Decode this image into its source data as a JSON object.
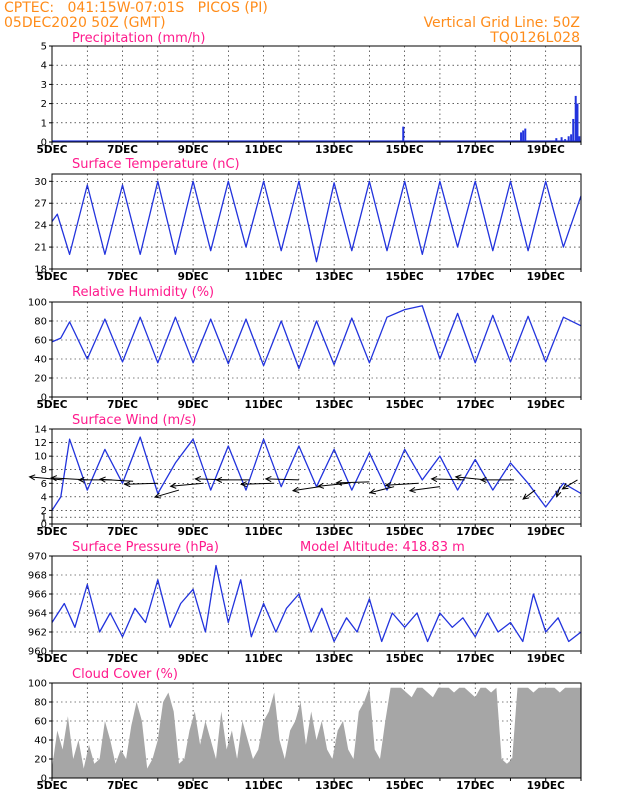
{
  "header": {
    "source_line": "CPTEC:   041:15W-07:01S   PICOS (PI)",
    "run_line": "05DEC2020 50Z (GMT)",
    "grid_note": "Vertical Grid Line: 50Z",
    "product_code": "TQ0126L028"
  },
  "colors": {
    "header_text": "#ff8c1a",
    "panel_title": "#ff1a8c",
    "series_line": "#2233dd",
    "cloud_fill": "#a6a6a6",
    "wind_arrow": "#000000"
  },
  "x_axis_labels": [
    "5DEC",
    "7DEC",
    "9DEC",
    "11DEC",
    "13DEC",
    "15DEC",
    "17DEC",
    "19DEC"
  ],
  "chart_data": [
    {
      "id": "precip",
      "type": "bar",
      "title": "Precipitation (mm/h)",
      "ylim": [
        0,
        5
      ],
      "yticks": [
        0,
        1,
        2,
        3,
        4,
        5
      ],
      "x_range_days": [
        5,
        20
      ],
      "grid": true,
      "x": [
        14.96,
        18.3,
        18.36,
        18.42,
        19.3,
        19.45,
        19.55,
        19.65,
        19.72,
        19.78,
        19.85,
        19.9,
        19.95
      ],
      "values": [
        0.8,
        0.5,
        0.6,
        0.7,
        0.2,
        0.25,
        0.15,
        0.3,
        0.4,
        1.2,
        2.4,
        2.0,
        0.3
      ]
    },
    {
      "id": "temp",
      "type": "line",
      "title": "Surface Temperature (nC)",
      "ylim": [
        18,
        31
      ],
      "yticks": [
        18,
        21,
        24,
        27,
        30
      ],
      "x_range_days": [
        5,
        20
      ],
      "grid": true,
      "x": [
        5,
        5.15,
        5.5,
        6,
        6.5,
        7,
        7.5,
        8,
        8.5,
        9,
        9.5,
        10,
        10.5,
        11,
        11.5,
        12,
        12.5,
        13,
        13.5,
        14,
        14.5,
        15,
        15.5,
        16,
        16.5,
        17,
        17.5,
        18,
        18.5,
        19,
        19.5,
        20
      ],
      "values": [
        24.5,
        25.5,
        20,
        29.5,
        20,
        29.5,
        20,
        30,
        20,
        30,
        20.5,
        30,
        21,
        30,
        20.5,
        30,
        19,
        29.8,
        20.5,
        30,
        20.5,
        30,
        20,
        30,
        21,
        30,
        20.5,
        30,
        20.5,
        30,
        21,
        28
      ]
    },
    {
      "id": "rh",
      "type": "line",
      "title": "Relative Humidity (%)",
      "ylim": [
        0,
        100
      ],
      "yticks": [
        0,
        20,
        40,
        60,
        80,
        100
      ],
      "x_range_days": [
        5,
        20
      ],
      "grid": true,
      "x": [
        5,
        5.25,
        5.5,
        6,
        6.5,
        7,
        7.5,
        8,
        8.5,
        9,
        9.5,
        10,
        10.5,
        11,
        11.5,
        12,
        12.5,
        13,
        13.5,
        14,
        14.5,
        15,
        15.5,
        16,
        16.5,
        17,
        17.5,
        18,
        18.5,
        19,
        19.5,
        20
      ],
      "values": [
        58,
        62,
        79,
        40,
        82,
        37,
        84,
        36,
        84,
        36,
        82,
        35,
        82,
        33,
        80,
        30,
        80,
        34,
        83,
        36,
        84,
        92,
        96,
        40,
        88,
        36,
        86,
        37,
        85,
        37,
        84,
        75
      ]
    },
    {
      "id": "wind",
      "type": "line",
      "title": "Surface Wind (m/s)",
      "ylim": [
        0,
        14
      ],
      "yticks": [
        0,
        1,
        2,
        4,
        6,
        8,
        10,
        12,
        14
      ],
      "x_range_days": [
        5,
        20
      ],
      "grid": true,
      "x": [
        5,
        5.25,
        5.5,
        6,
        6.5,
        7,
        7.5,
        8,
        8.5,
        9,
        9.5,
        10,
        10.5,
        11,
        11.5,
        12,
        12.5,
        13,
        13.5,
        14,
        14.5,
        15,
        15.5,
        16,
        16.5,
        17,
        17.5,
        18,
        18.5,
        19,
        19.5,
        20
      ],
      "values": [
        2,
        4,
        12.5,
        5,
        11,
        6,
        12.8,
        4.5,
        9,
        12.5,
        5,
        11.5,
        5,
        12.5,
        5.5,
        11.5,
        5.5,
        11,
        5,
        10.5,
        5,
        11,
        6.5,
        10,
        5,
        9.5,
        5,
        9,
        6,
        2.5,
        6,
        4.5
      ],
      "arrows": [
        {
          "day": 5.3,
          "speed": 6.5,
          "dx": -0.55,
          "dy": -0.15
        },
        {
          "day": 6.0,
          "speed": 6.5,
          "dx": -0.6,
          "dy": -0.1
        },
        {
          "day": 6.7,
          "speed": 6.5,
          "dx": -0.55,
          "dy": 0.0
        },
        {
          "day": 7.3,
          "speed": 6.3,
          "dx": -0.55,
          "dy": -0.1
        },
        {
          "day": 8.0,
          "speed": 6.0,
          "dx": -0.55,
          "dy": 0.05
        },
        {
          "day": 8.6,
          "speed": 5.0,
          "dx": -0.4,
          "dy": 0.35
        },
        {
          "day": 9.3,
          "speed": 6.0,
          "dx": -0.55,
          "dy": 0.15
        },
        {
          "day": 10.0,
          "speed": 6.5,
          "dx": -0.55,
          "dy": -0.05
        },
        {
          "day": 10.6,
          "speed": 6.5,
          "dx": -0.55,
          "dy": 0.0
        },
        {
          "day": 11.3,
          "speed": 6.0,
          "dx": -0.55,
          "dy": 0.05
        },
        {
          "day": 12.0,
          "speed": 6.5,
          "dx": -0.55,
          "dy": -0.05
        },
        {
          "day": 12.6,
          "speed": 5.5,
          "dx": -0.45,
          "dy": 0.2
        },
        {
          "day": 13.4,
          "speed": 6.0,
          "dx": -0.5,
          "dy": 0.15
        },
        {
          "day": 14.0,
          "speed": 6.2,
          "dx": -0.55,
          "dy": 0.05
        },
        {
          "day": 14.7,
          "speed": 5.5,
          "dx": -0.4,
          "dy": 0.3
        },
        {
          "day": 15.4,
          "speed": 6.0,
          "dx": -0.55,
          "dy": 0.1
        },
        {
          "day": 16.0,
          "speed": 5.5,
          "dx": -0.5,
          "dy": 0.2
        },
        {
          "day": 16.7,
          "speed": 6.5,
          "dx": -0.55,
          "dy": -0.05
        },
        {
          "day": 17.3,
          "speed": 6.5,
          "dx": -0.5,
          "dy": -0.15
        },
        {
          "day": 18.1,
          "speed": 6.5,
          "dx": -0.55,
          "dy": 0.0
        },
        {
          "day": 18.7,
          "speed": 5.0,
          "dx": -0.2,
          "dy": 0.45
        },
        {
          "day": 19.4,
          "speed": 5.5,
          "dx": -0.05,
          "dy": 0.5
        },
        {
          "day": 19.9,
          "speed": 6.5,
          "dx": -0.25,
          "dy": 0.45
        }
      ]
    },
    {
      "id": "pres",
      "type": "line",
      "title": "Surface Pressure (hPa)",
      "annotation": "Model Altitude: 418.83 m",
      "ylim": [
        960,
        970
      ],
      "yticks": [
        960,
        962,
        964,
        966,
        968,
        970
      ],
      "x_range_days": [
        5,
        20
      ],
      "grid": true,
      "x": [
        5,
        5.35,
        5.65,
        6,
        6.35,
        6.65,
        7,
        7.35,
        7.65,
        8,
        8.35,
        8.65,
        9,
        9.35,
        9.65,
        10,
        10.35,
        10.65,
        11,
        11.35,
        11.65,
        12,
        12.35,
        12.65,
        13,
        13.35,
        13.65,
        14,
        14.35,
        14.65,
        15,
        15.35,
        15.65,
        16,
        16.35,
        16.65,
        17,
        17.35,
        17.65,
        18,
        18.35,
        18.65,
        19,
        19.35,
        19.65,
        20
      ],
      "values": [
        963,
        965,
        962.5,
        967,
        962,
        964,
        961.5,
        964.5,
        963,
        967.5,
        962.5,
        965,
        966.5,
        962,
        969,
        963,
        967.5,
        961.5,
        965,
        962,
        964.5,
        966,
        962,
        964.5,
        961,
        963.5,
        962,
        965.5,
        961,
        964,
        962.5,
        964,
        961,
        964,
        962.5,
        963.5,
        961.5,
        964,
        962,
        963,
        961,
        966,
        962,
        963.5,
        961,
        962
      ]
    },
    {
      "id": "cloud",
      "type": "area",
      "title": "Cloud Cover (%)",
      "ylim": [
        0,
        100
      ],
      "yticks": [
        0,
        20,
        40,
        60,
        80,
        100
      ],
      "x_range_days": [
        5,
        20
      ],
      "grid": true,
      "x": [
        5,
        5.15,
        5.3,
        5.45,
        5.6,
        5.75,
        5.9,
        6.05,
        6.2,
        6.35,
        6.5,
        6.65,
        6.8,
        6.95,
        7.1,
        7.25,
        7.4,
        7.55,
        7.7,
        7.85,
        8.0,
        8.15,
        8.3,
        8.45,
        8.6,
        8.75,
        8.9,
        9.05,
        9.2,
        9.35,
        9.5,
        9.65,
        9.8,
        9.95,
        10.1,
        10.25,
        10.4,
        10.55,
        10.7,
        10.85,
        11.0,
        11.15,
        11.3,
        11.45,
        11.6,
        11.75,
        11.9,
        12.05,
        12.2,
        12.35,
        12.5,
        12.65,
        12.8,
        12.95,
        13.1,
        13.25,
        13.4,
        13.55,
        13.7,
        13.85,
        14.0,
        14.15,
        14.3,
        14.45,
        14.6,
        14.75,
        14.9,
        15.05,
        15.2,
        15.35,
        15.5,
        15.65,
        15.8,
        15.95,
        16.1,
        16.25,
        16.4,
        16.55,
        16.7,
        16.85,
        17.0,
        17.15,
        17.3,
        17.45,
        17.6,
        17.75,
        17.9,
        18.05,
        18.2,
        18.35,
        18.5,
        18.65,
        18.8,
        18.95,
        19.1,
        19.25,
        19.4,
        19.55,
        19.7,
        19.85,
        20.0
      ],
      "values": [
        10,
        50,
        30,
        65,
        20,
        40,
        10,
        35,
        15,
        20,
        60,
        40,
        15,
        30,
        20,
        55,
        80,
        60,
        10,
        20,
        40,
        80,
        90,
        70,
        15,
        20,
        50,
        70,
        35,
        60,
        40,
        20,
        70,
        30,
        50,
        20,
        60,
        40,
        20,
        30,
        60,
        70,
        90,
        40,
        20,
        50,
        60,
        80,
        35,
        70,
        40,
        60,
        30,
        20,
        50,
        60,
        30,
        20,
        70,
        80,
        95,
        30,
        20,
        60,
        95,
        95,
        95,
        90,
        85,
        95,
        95,
        90,
        85,
        95,
        95,
        95,
        90,
        95,
        95,
        90,
        85,
        95,
        95,
        90,
        95,
        20,
        15,
        20,
        95,
        95,
        95,
        90,
        95,
        95,
        95,
        95,
        90,
        95,
        95,
        95,
        95
      ]
    }
  ]
}
